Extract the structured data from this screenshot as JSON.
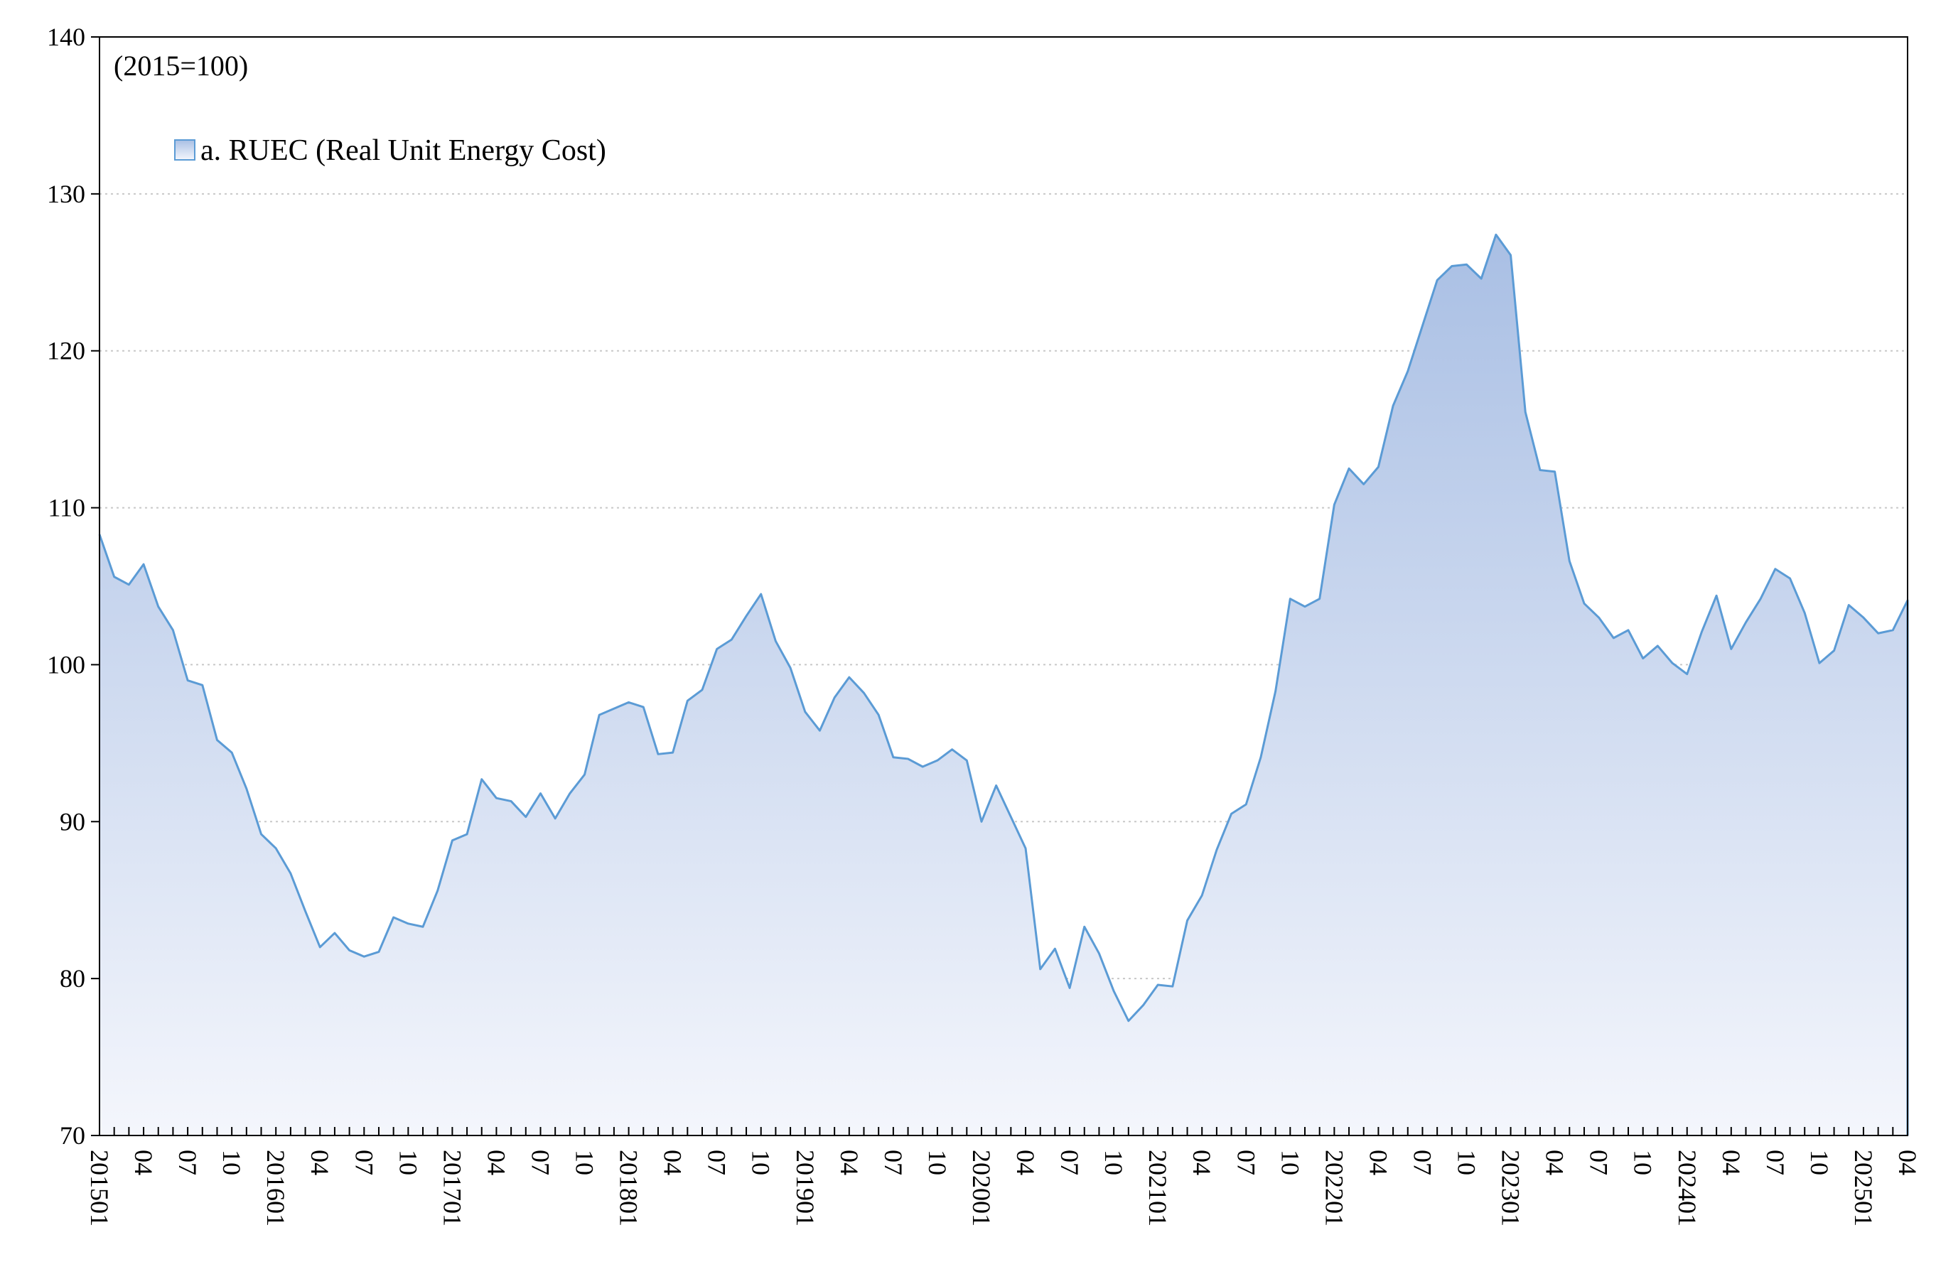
{
  "chart_data": {
    "type": "area",
    "title": "",
    "note": "(2015=100)",
    "xlabel": "",
    "ylabel": "",
    "ylim": [
      70,
      140
    ],
    "yticks": [
      70,
      80,
      90,
      100,
      110,
      120,
      130,
      140
    ],
    "grid": "horizontal dotted",
    "legend_placement": "top-left",
    "colors": {
      "fill_top": "#a9bfe4",
      "fill_bottom": "#f4f6fc",
      "line": "#5b9bd5"
    },
    "x_start": "2015-01",
    "x_end": "2025-04",
    "x_tick_labels": [
      {
        "index": 0,
        "label": "201501"
      },
      {
        "index": 3,
        "label": "04"
      },
      {
        "index": 6,
        "label": "07"
      },
      {
        "index": 9,
        "label": "10"
      },
      {
        "index": 12,
        "label": "201601"
      },
      {
        "index": 15,
        "label": "04"
      },
      {
        "index": 18,
        "label": "07"
      },
      {
        "index": 21,
        "label": "10"
      },
      {
        "index": 24,
        "label": "201701"
      },
      {
        "index": 27,
        "label": "04"
      },
      {
        "index": 30,
        "label": "07"
      },
      {
        "index": 33,
        "label": "10"
      },
      {
        "index": 36,
        "label": "201801"
      },
      {
        "index": 39,
        "label": "04"
      },
      {
        "index": 42,
        "label": "07"
      },
      {
        "index": 45,
        "label": "10"
      },
      {
        "index": 48,
        "label": "201901"
      },
      {
        "index": 51,
        "label": "04"
      },
      {
        "index": 54,
        "label": "07"
      },
      {
        "index": 57,
        "label": "10"
      },
      {
        "index": 60,
        "label": "202001"
      },
      {
        "index": 63,
        "label": "04"
      },
      {
        "index": 66,
        "label": "07"
      },
      {
        "index": 69,
        "label": "10"
      },
      {
        "index": 72,
        "label": "202101"
      },
      {
        "index": 75,
        "label": "04"
      },
      {
        "index": 78,
        "label": "07"
      },
      {
        "index": 81,
        "label": "10"
      },
      {
        "index": 84,
        "label": "202201"
      },
      {
        "index": 87,
        "label": "04"
      },
      {
        "index": 90,
        "label": "07"
      },
      {
        "index": 93,
        "label": "10"
      },
      {
        "index": 96,
        "label": "202301"
      },
      {
        "index": 99,
        "label": "04"
      },
      {
        "index": 102,
        "label": "07"
      },
      {
        "index": 105,
        "label": "10"
      },
      {
        "index": 108,
        "label": "202401"
      },
      {
        "index": 111,
        "label": "04"
      },
      {
        "index": 114,
        "label": "07"
      },
      {
        "index": 117,
        "label": "10"
      },
      {
        "index": 120,
        "label": "202501"
      },
      {
        "index": 123,
        "label": "04"
      }
    ],
    "series": [
      {
        "name": "a. RUEC (Real Unit Energy Cost)",
        "values": [
          108.3,
          105.6,
          105.1,
          106.4,
          103.7,
          102.2,
          99.0,
          98.7,
          95.2,
          94.4,
          92.1,
          89.2,
          88.3,
          86.7,
          84.3,
          82.0,
          82.9,
          81.8,
          81.4,
          81.7,
          83.9,
          83.5,
          83.3,
          85.6,
          88.8,
          89.2,
          92.7,
          91.5,
          91.3,
          90.3,
          91.8,
          90.2,
          91.8,
          93.0,
          96.8,
          97.2,
          97.6,
          97.3,
          94.3,
          94.4,
          97.7,
          98.4,
          101.0,
          101.6,
          103.1,
          104.5,
          101.5,
          99.8,
          97.0,
          95.8,
          97.9,
          99.2,
          98.2,
          96.8,
          94.1,
          94.0,
          93.5,
          93.9,
          94.6,
          93.9,
          90.0,
          92.3,
          90.3,
          88.3,
          80.6,
          81.9,
          79.4,
          83.3,
          81.6,
          79.2,
          77.3,
          78.3,
          79.6,
          79.5,
          83.7,
          85.3,
          88.2,
          90.5,
          91.1,
          94.1,
          98.3,
          104.2,
          103.7,
          104.2,
          110.2,
          112.5,
          111.5,
          112.6,
          116.5,
          118.7,
          121.6,
          124.5,
          125.4,
          125.5,
          124.6,
          127.4,
          126.1,
          116.1,
          112.4,
          112.3,
          106.6,
          103.9,
          103.0,
          101.7,
          102.2,
          100.4,
          101.2,
          100.1,
          99.4,
          102.1,
          104.4,
          101.0,
          102.7,
          104.2,
          106.1,
          105.5,
          103.3,
          100.1,
          100.9,
          103.8,
          103.0,
          102.0,
          102.2,
          104.1
        ]
      }
    ]
  }
}
